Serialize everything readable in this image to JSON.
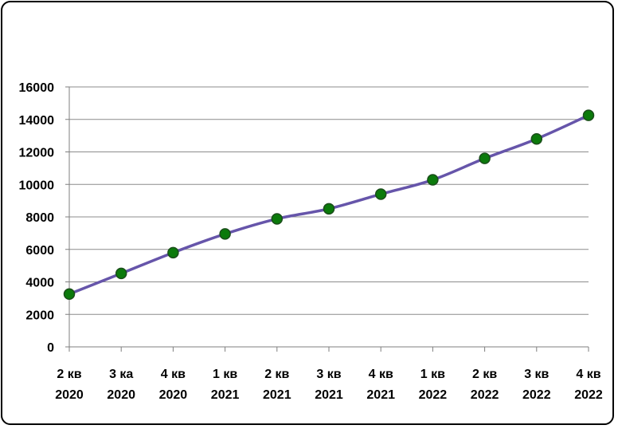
{
  "chart_data": {
    "type": "line",
    "title": "",
    "xlabel": "",
    "ylabel": "",
    "ylim": [
      0,
      16000
    ],
    "ytick_step": 2000,
    "grid": true,
    "legend": "none",
    "categories": [
      [
        "2 кв",
        "2020"
      ],
      [
        "3 ка",
        "2020"
      ],
      [
        "4 кв",
        "2020"
      ],
      [
        "1 кв",
        "2021"
      ],
      [
        "2 кв",
        "2021"
      ],
      [
        "3 кв",
        "2021"
      ],
      [
        "4 кв",
        "2021"
      ],
      [
        "1 кв",
        "2022"
      ],
      [
        "2 кв",
        "2022"
      ],
      [
        "3 кв",
        "2022"
      ],
      [
        "4 кв",
        "2022"
      ]
    ],
    "series": [
      {
        "values": [
          3250,
          4520,
          5800,
          6950,
          7880,
          8500,
          9400,
          10280,
          11600,
          12800,
          14250
        ]
      }
    ],
    "colors": {
      "line": "#6655aa",
      "marker_fill": "#0b7a0b",
      "marker_stroke": "#1a4d1a",
      "grid": "#8c8c8c"
    }
  }
}
